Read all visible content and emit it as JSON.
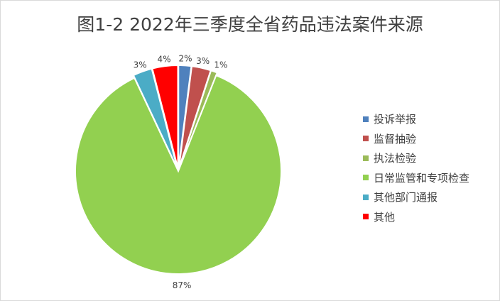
{
  "chart_data": {
    "type": "pie",
    "title": "图1-2  2022年三季度全省药品违法案件来源",
    "slices": [
      {
        "name": "投诉举报",
        "value": 2,
        "label": "2%",
        "color": "#4F81BD"
      },
      {
        "name": "监督抽验",
        "value": 3,
        "label": "3%",
        "color": "#C0504D"
      },
      {
        "name": "执法检验",
        "value": 1,
        "label": "1%",
        "color": "#9BBB59"
      },
      {
        "name": "日常监管和专项检查",
        "value": 87,
        "label": "87%",
        "color": "#92D050"
      },
      {
        "name": "其他部门通报",
        "value": 3,
        "label": "3%",
        "color": "#4BACC6"
      },
      {
        "name": "其他",
        "value": 4,
        "label": "4%",
        "color": "#FF0000"
      }
    ],
    "start_angle": "top, clockwise",
    "legend": "right"
  }
}
